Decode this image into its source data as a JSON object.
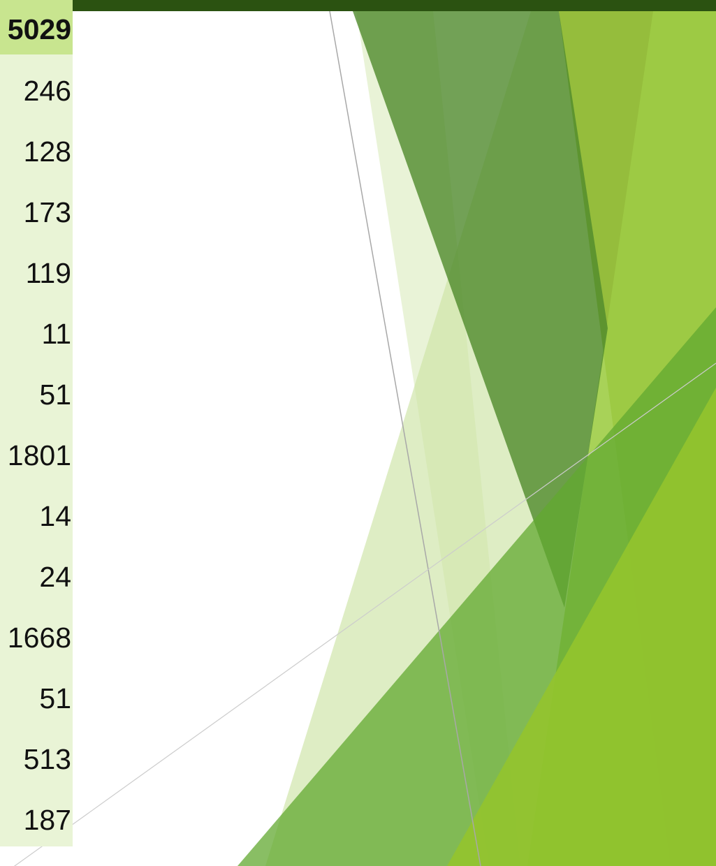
{
  "table": {
    "header_value": "5029",
    "values": [
      "246",
      "128",
      "173",
      "119",
      "11",
      "51",
      "1801",
      "14",
      "24",
      "1668",
      "51",
      "513",
      "187"
    ]
  },
  "colors": {
    "top_bar": "#2b5211",
    "header_cell": "#c8e58f",
    "column_bg": "#e9f4d6"
  }
}
